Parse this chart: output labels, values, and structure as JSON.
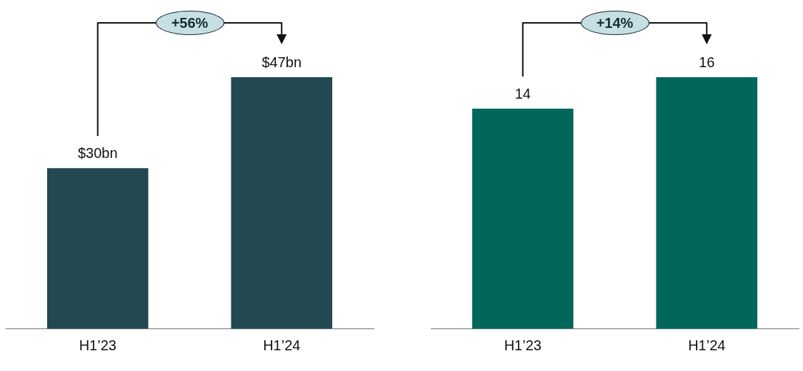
{
  "chart_data": [
    {
      "type": "bar",
      "categories": [
        "H1’23",
        "H1’24"
      ],
      "values": [
        30,
        47
      ],
      "color": "#224851",
      "value_labels": [
        "$30bn",
        "$47bn"
      ],
      "annotations": [
        "+56%"
      ],
      "grid": false,
      "legend": false
    },
    {
      "type": "bar",
      "categories": [
        "H1’23",
        "H1’24"
      ],
      "values": [
        14,
        16
      ],
      "color": "#02675a",
      "value_labels": [
        "14",
        "16"
      ],
      "annotations": [
        "+14%"
      ],
      "grid": false,
      "legend": false
    }
  ]
}
